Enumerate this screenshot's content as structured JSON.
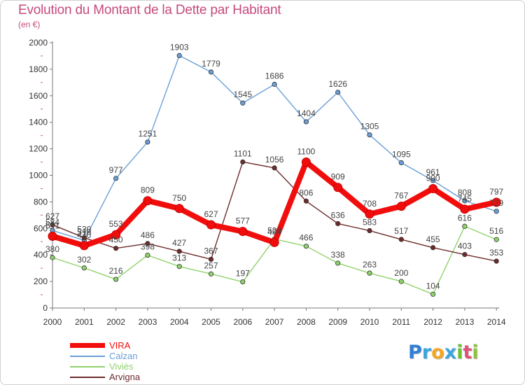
{
  "title": "Evolution du Montant de la Dette par Habitant",
  "subtitle": "(en €)",
  "logo": {
    "letters": [
      "P",
      "r",
      "o",
      "x",
      "i",
      "t",
      "i"
    ],
    "colors": [
      "#2f7fd6",
      "#3aa5e0",
      "#f5a623",
      "#3aa5e0",
      "#6bbf3a",
      "#e0527a",
      "#8fc43c"
    ]
  },
  "chart_data": {
    "type": "line",
    "title": "Evolution du Montant de la Dette par Habitant",
    "ylabel": "(en €)",
    "xlabel": "",
    "ylim": [
      0,
      2000
    ],
    "yticks": [
      0,
      200,
      400,
      600,
      800,
      1000,
      1200,
      1400,
      1600,
      1800,
      2000
    ],
    "grid": false,
    "legend": "bottom-left",
    "x": [
      "2000",
      "2001",
      "2002",
      "2003",
      "2004",
      "2005",
      "2006",
      "2007",
      "2008",
      "2009",
      "2010",
      "2011",
      "2012",
      "2013",
      "2014"
    ],
    "series": [
      {
        "name": "Calzan",
        "color": "#6a9fd6",
        "values": [
          584,
          510,
          977,
          1251,
          1903,
          1779,
          1545,
          1686,
          1404,
          1626,
          1305,
          1095,
          961,
          808,
          729
        ]
      },
      {
        "name": "Viviès",
        "color": "#8fd36b",
        "values": [
          380,
          302,
          216,
          398,
          313,
          257,
          197,
          520,
          466,
          338,
          263,
          200,
          104,
          616,
          516
        ]
      },
      {
        "name": "Arvigna",
        "color": "#6e2b2b",
        "values": [
          627,
          530,
          450,
          486,
          427,
          367,
          1101,
          1056,
          806,
          636,
          583,
          517,
          455,
          403,
          353
        ]
      },
      {
        "name": "VIRA",
        "color": "#f20d0d",
        "values": [
          541,
          470,
          553,
          809,
          750,
          627,
          577,
          494,
          1100,
          909,
          708,
          767,
          900,
          745,
          797
        ]
      }
    ]
  }
}
